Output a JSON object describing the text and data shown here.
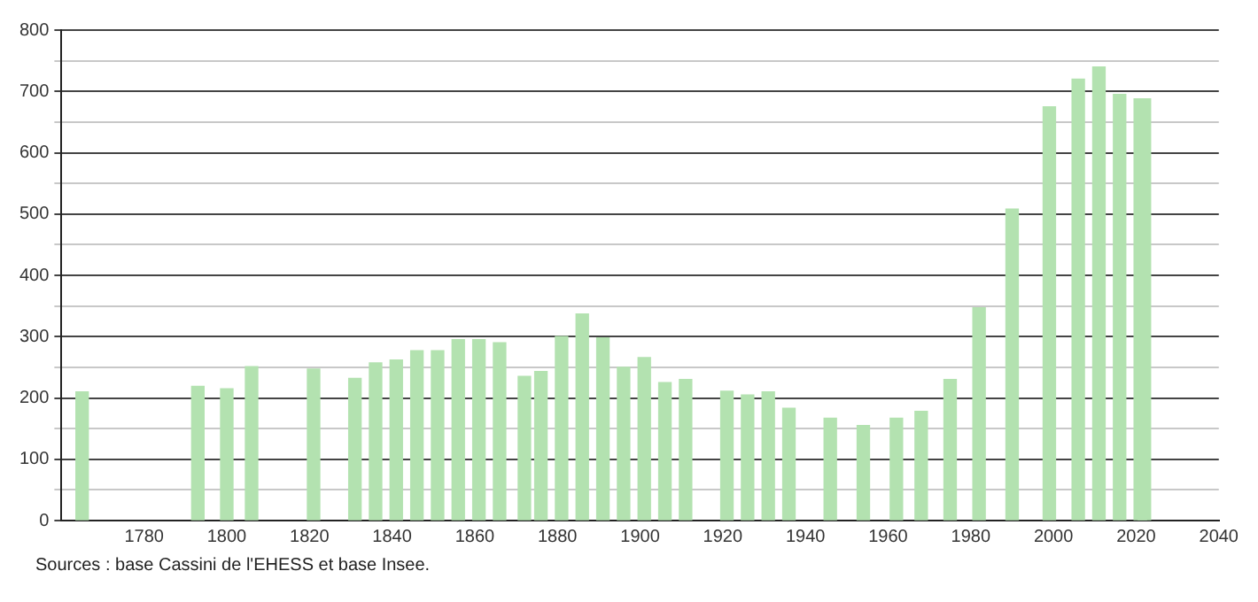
{
  "chart_data": {
    "type": "bar",
    "x": [
      1765,
      1793,
      1800,
      1806,
      1821,
      1831,
      1836,
      1841,
      1846,
      1851,
      1856,
      1861,
      1866,
      1872,
      1876,
      1881,
      1886,
      1891,
      1896,
      1901,
      1906,
      1911,
      1921,
      1926,
      1931,
      1936,
      1946,
      1954,
      1962,
      1968,
      1975,
      1982,
      1990,
      1999,
      2006,
      2011,
      2016,
      2021,
      2022
    ],
    "values": [
      210,
      219,
      215,
      251,
      247,
      232,
      257,
      262,
      277,
      277,
      295,
      295,
      290,
      235,
      243,
      300,
      337,
      298,
      250,
      266,
      225,
      230,
      211,
      205,
      210,
      183,
      167,
      155,
      167,
      178,
      230,
      347,
      508,
      675,
      720,
      740,
      695,
      688,
      688
    ],
    "color": "#b3e2b0",
    "xlim": [
      1760,
      2040
    ],
    "xticks": [
      1780,
      1800,
      1820,
      1840,
      1860,
      1880,
      1900,
      1920,
      1940,
      1960,
      1980,
      2000,
      2020,
      2040
    ],
    "ylim": [
      0,
      800
    ],
    "yticks": [
      0,
      {
        "value": 50,
        "label": null
      },
      100,
      {
        "value": 150,
        "label": null
      },
      200,
      {
        "value": 250,
        "label": null
      },
      300,
      {
        "value": 350,
        "label": null
      },
      400,
      {
        "value": 450,
        "label": null
      },
      500,
      {
        "value": 550,
        "label": null
      },
      600,
      {
        "value": 650,
        "label": null
      },
      700,
      {
        "value": 750,
        "label": null
      },
      800
    ],
    "grid": "y",
    "annotations": [
      "Sources : base Cassini de l'EHESS et base Insee."
    ]
  }
}
